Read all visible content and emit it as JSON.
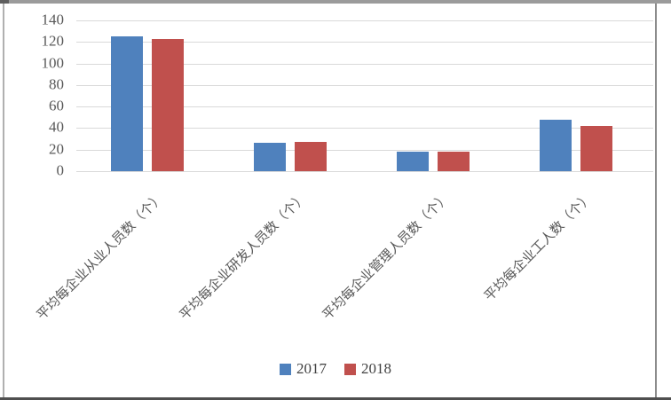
{
  "chart_data": {
    "type": "bar",
    "title": "",
    "categories": [
      "平均每企业从业人员数（个）",
      "平均每企业研发人员数（个）",
      "平均每企业管理人员数（个）",
      "平均每企业工人数（个）"
    ],
    "series": [
      {
        "name": "2017",
        "color": "#4F81BD",
        "values": [
          125,
          26,
          18,
          48
        ]
      },
      {
        "name": "2018",
        "color": "#C0504D",
        "values": [
          123,
          27,
          18,
          42
        ]
      }
    ],
    "ylim": [
      0,
      140
    ],
    "ytick_step": 20,
    "yticks": [
      140,
      120,
      100,
      80,
      60,
      40,
      20,
      0
    ],
    "grid": true,
    "legend_position": "bottom",
    "gridline_color": "#d9d9d9",
    "tick_label_color": "#595959"
  }
}
